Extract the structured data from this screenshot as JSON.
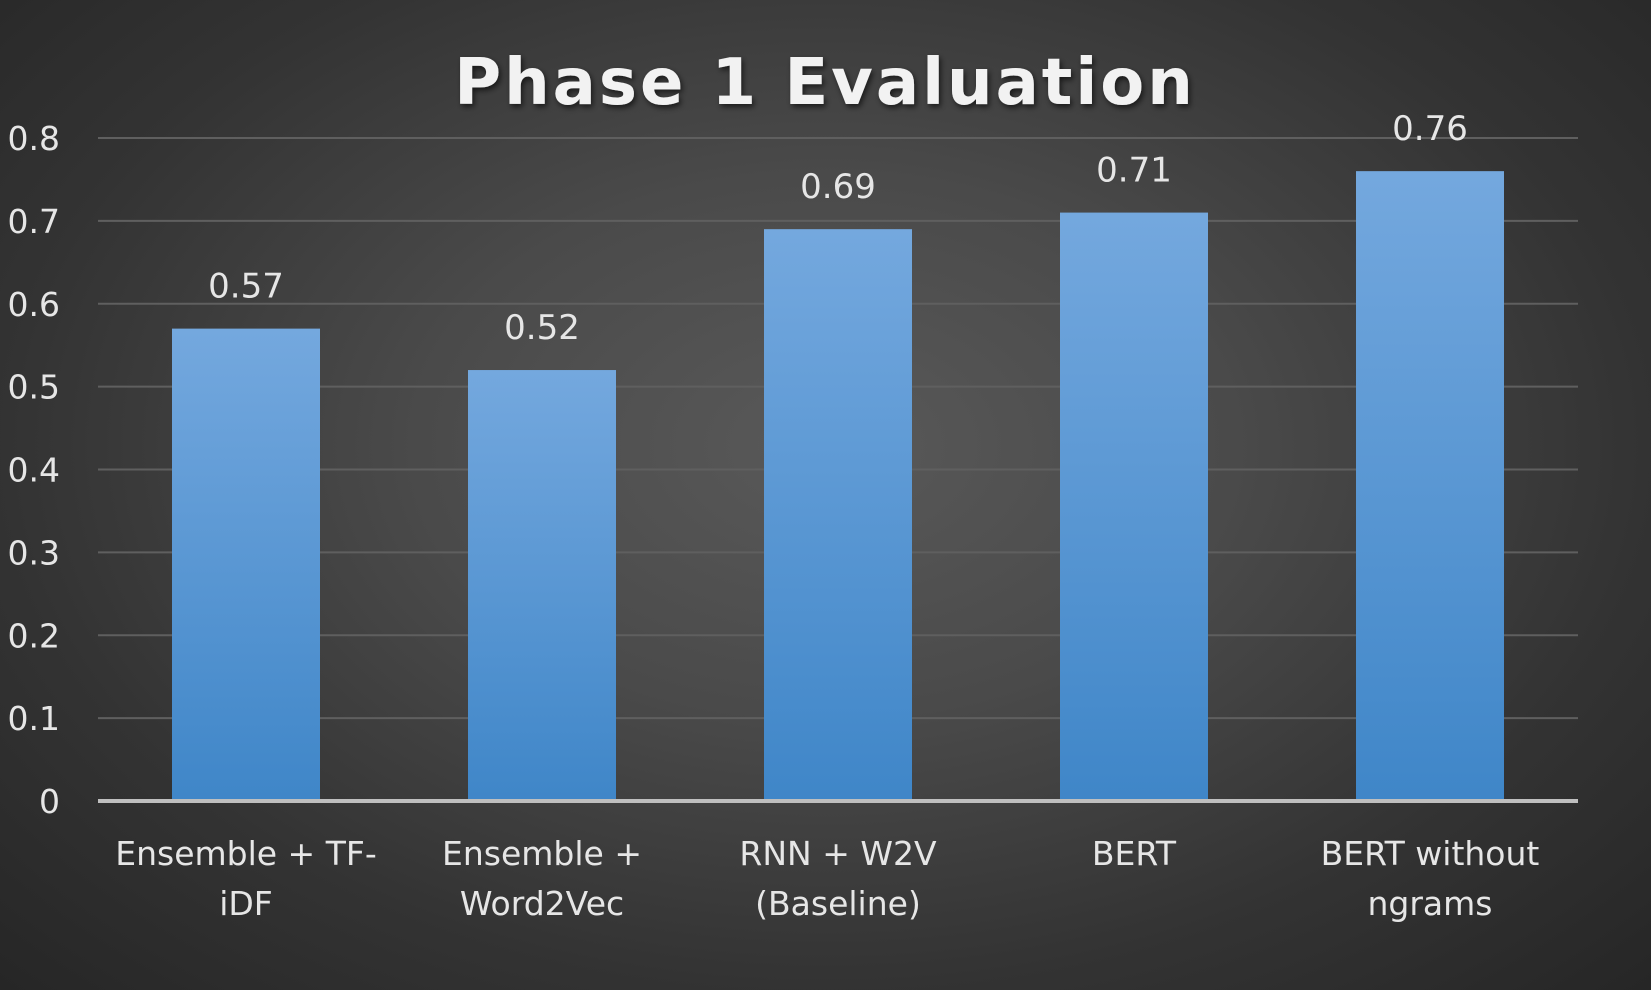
{
  "chart_data": {
    "type": "bar",
    "title": "Phase 1 Evaluation",
    "categories": [
      [
        "Ensemble + TF-",
        "iDF"
      ],
      [
        "Ensemble +",
        "Word2Vec"
      ],
      [
        "RNN + W2V",
        "(Baseline)"
      ],
      [
        "BERT"
      ],
      [
        "BERT without",
        "ngrams"
      ]
    ],
    "values": [
      0.57,
      0.52,
      0.69,
      0.71,
      0.76
    ],
    "data_labels": [
      "0.57",
      "0.52",
      "0.69",
      "0.71",
      "0.76"
    ],
    "yticks": [
      "0",
      "0.1",
      "0.2",
      "0.3",
      "0.4",
      "0.5",
      "0.6",
      "0.7",
      "0.8"
    ],
    "ylim": [
      0,
      0.8
    ],
    "grid": true,
    "legend": "none",
    "colors": {
      "bar_top": "#74a8de",
      "bar_bottom": "#3f86c8",
      "gridline": "#5f5f5f",
      "axis": "#bfbfbf",
      "text": "#e6e6e6"
    }
  }
}
